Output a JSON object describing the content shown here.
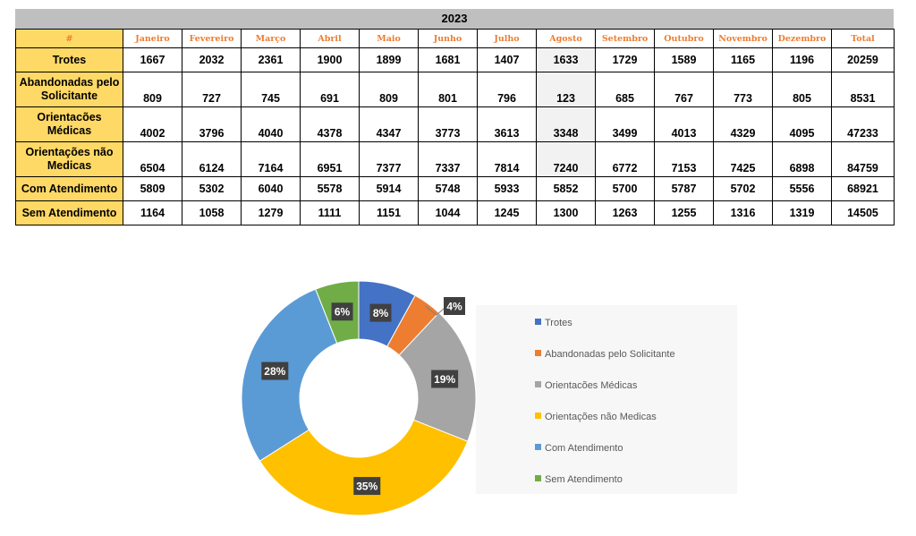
{
  "table": {
    "year": "2023",
    "corner": "#",
    "months": [
      "Janeiro",
      "Fevereiro",
      "Março",
      "Abril",
      "Maio",
      "Junho",
      "Julho",
      "Agosto",
      "Setembro",
      "Outubro",
      "Novembro",
      "Dezembro",
      "Total"
    ],
    "rows": [
      {
        "label": "Trotes",
        "values": [
          "1667",
          "2032",
          "2361",
          "1900",
          "1899",
          "1681",
          "1407",
          "1633",
          "1729",
          "1589",
          "1165",
          "1196",
          "20259"
        ]
      },
      {
        "label": "Abandonadas pelo Solicitante",
        "values": [
          "809",
          "727",
          "745",
          "691",
          "809",
          "801",
          "796",
          "123",
          "685",
          "767",
          "773",
          "805",
          "8531"
        ]
      },
      {
        "label": "Orientacões Médicas",
        "values": [
          "4002",
          "3796",
          "4040",
          "4378",
          "4347",
          "3773",
          "3613",
          "3348",
          "3499",
          "4013",
          "4329",
          "4095",
          "47233"
        ]
      },
      {
        "label": "Orientações não Medicas",
        "values": [
          "6504",
          "6124",
          "7164",
          "6951",
          "7377",
          "7337",
          "7814",
          "7240",
          "6772",
          "7153",
          "7425",
          "6898",
          "84759"
        ]
      },
      {
        "label": "Com Atendimento",
        "values": [
          "5809",
          "5302",
          "6040",
          "5578",
          "5914",
          "5748",
          "5933",
          "5852",
          "5700",
          "5787",
          "5702",
          "5556",
          "68921"
        ]
      },
      {
        "label": "Sem Atendimento",
        "values": [
          "1164",
          "1058",
          "1279",
          "1111",
          "1151",
          "1044",
          "1245",
          "1300",
          "1263",
          "1255",
          "1316",
          "1319",
          "14505"
        ]
      }
    ]
  },
  "chart_data": {
    "type": "pie",
    "variant": "doughnut",
    "categories": [
      "Trotes",
      "Abandonadas pelo Solicitante",
      "Orientacões Médicas",
      "Orientações não Medicas",
      "Com Atendimento",
      "Sem Atendimento"
    ],
    "values": [
      8,
      4,
      19,
      35,
      28,
      6
    ],
    "labels": [
      "8%",
      "4%",
      "19%",
      "35%",
      "28%",
      "6%"
    ],
    "colors": [
      "#4472c4",
      "#ed7d31",
      "#a5a5a5",
      "#ffc000",
      "#5b9bd5",
      "#70ad47"
    ],
    "legend_position": "right"
  }
}
